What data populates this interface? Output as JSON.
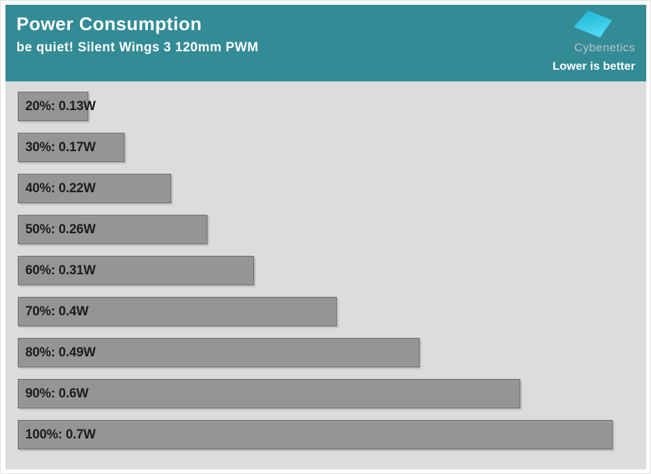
{
  "header": {
    "title": "Power Consumption",
    "subtitle": "be quiet! Silent Wings 3 120mm PWM",
    "brand": "Cybenetics",
    "note": "Lower is better"
  },
  "chart_data": {
    "type": "bar",
    "orientation": "horizontal",
    "title": "Power Consumption",
    "subtitle": "be quiet! Silent Wings 3 120mm PWM",
    "annotation": "Lower is better",
    "unit": "W",
    "categories": [
      "20%",
      "30%",
      "40%",
      "50%",
      "60%",
      "70%",
      "80%",
      "90%",
      "100%"
    ],
    "values": [
      0.13,
      0.17,
      0.22,
      0.26,
      0.31,
      0.4,
      0.49,
      0.6,
      0.7
    ],
    "bar_labels": [
      "20%: 0.13W",
      "30%: 0.17W",
      "40%: 0.22W",
      "50%: 0.26W",
      "60%: 0.31W",
      "70%: 0.4W",
      "80%: 0.49W",
      "90%: 0.6W",
      "100%: 0.7W"
    ],
    "xlabel": "",
    "ylabel": "",
    "value_range_shown": [
      0.13,
      0.7
    ],
    "grid": false,
    "axes_visible": false,
    "legend": null,
    "label_position": "inside-start"
  },
  "colors": {
    "header_bg": "#338b96",
    "panel_bg": "#dcdcdd",
    "bar_fill": "#959595",
    "bar_border": "#6d6d6d",
    "bar_label_text": "#1c1c1c",
    "title_text": "#ffffff",
    "note_text": "#ffffff",
    "brand_text": "#b8c3ca",
    "page_margin": "#fdfdfd",
    "logo_gradient_start": "#23b2d0",
    "logo_gradient_end": "#4cdbf4"
  }
}
